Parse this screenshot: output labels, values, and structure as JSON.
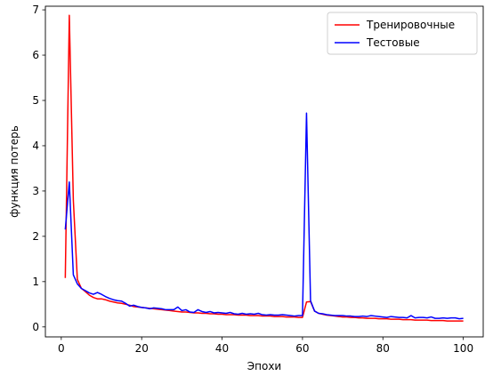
{
  "chart_data": {
    "type": "line",
    "xlabel": "Эпохи",
    "ylabel": "функция потерь",
    "xlim": [
      -3.95,
      104.95
    ],
    "ylim": [
      -0.22,
      7.08
    ],
    "xticks": [
      0,
      20,
      40,
      60,
      80,
      100
    ],
    "yticks": [
      0,
      1,
      2,
      3,
      4,
      5,
      6,
      7
    ],
    "grid": false,
    "legend_position": "top-right",
    "x": [
      1,
      2,
      3,
      4,
      5,
      6,
      7,
      8,
      9,
      10,
      11,
      12,
      13,
      14,
      15,
      16,
      17,
      18,
      19,
      20,
      21,
      22,
      23,
      24,
      25,
      26,
      27,
      28,
      29,
      30,
      31,
      32,
      33,
      34,
      35,
      36,
      37,
      38,
      39,
      40,
      41,
      42,
      43,
      44,
      45,
      46,
      47,
      48,
      49,
      50,
      51,
      52,
      53,
      54,
      55,
      56,
      57,
      58,
      59,
      60,
      61,
      62,
      63,
      64,
      65,
      66,
      67,
      68,
      69,
      70,
      71,
      72,
      73,
      74,
      75,
      76,
      77,
      78,
      79,
      80,
      81,
      82,
      83,
      84,
      85,
      86,
      87,
      88,
      89,
      90,
      91,
      92,
      93,
      94,
      95,
      96,
      97,
      98,
      99,
      100
    ],
    "series": [
      {
        "name": "Тренировочные",
        "color": "#ff0000",
        "values": [
          1.08,
          6.88,
          2.8,
          1.05,
          0.85,
          0.78,
          0.7,
          0.65,
          0.62,
          0.62,
          0.6,
          0.57,
          0.55,
          0.53,
          0.52,
          0.5,
          0.48,
          0.45,
          0.44,
          0.43,
          0.42,
          0.41,
          0.4,
          0.39,
          0.38,
          0.37,
          0.36,
          0.35,
          0.34,
          0.33,
          0.33,
          0.32,
          0.31,
          0.31,
          0.3,
          0.3,
          0.29,
          0.29,
          0.28,
          0.28,
          0.27,
          0.27,
          0.27,
          0.26,
          0.26,
          0.26,
          0.25,
          0.25,
          0.25,
          0.24,
          0.24,
          0.24,
          0.23,
          0.23,
          0.23,
          0.22,
          0.22,
          0.22,
          0.21,
          0.21,
          0.55,
          0.56,
          0.35,
          0.3,
          0.28,
          0.26,
          0.25,
          0.24,
          0.23,
          0.22,
          0.22,
          0.21,
          0.21,
          0.2,
          0.2,
          0.19,
          0.19,
          0.19,
          0.18,
          0.18,
          0.18,
          0.17,
          0.17,
          0.17,
          0.16,
          0.16,
          0.16,
          0.15,
          0.15,
          0.15,
          0.15,
          0.14,
          0.14,
          0.14,
          0.14,
          0.13,
          0.13,
          0.13,
          0.13,
          0.13
        ]
      },
      {
        "name": "Тестовые",
        "color": "#0000ff",
        "values": [
          2.15,
          3.2,
          1.15,
          0.95,
          0.85,
          0.8,
          0.75,
          0.72,
          0.76,
          0.72,
          0.67,
          0.63,
          0.6,
          0.58,
          0.57,
          0.52,
          0.46,
          0.48,
          0.45,
          0.43,
          0.42,
          0.4,
          0.42,
          0.41,
          0.4,
          0.38,
          0.38,
          0.38,
          0.44,
          0.36,
          0.38,
          0.33,
          0.32,
          0.38,
          0.34,
          0.32,
          0.34,
          0.31,
          0.32,
          0.31,
          0.3,
          0.32,
          0.29,
          0.28,
          0.3,
          0.28,
          0.29,
          0.28,
          0.3,
          0.27,
          0.26,
          0.27,
          0.26,
          0.26,
          0.27,
          0.26,
          0.25,
          0.24,
          0.25,
          0.25,
          4.72,
          0.58,
          0.35,
          0.3,
          0.29,
          0.27,
          0.26,
          0.25,
          0.25,
          0.25,
          0.24,
          0.24,
          0.23,
          0.23,
          0.24,
          0.23,
          0.25,
          0.24,
          0.23,
          0.22,
          0.21,
          0.23,
          0.22,
          0.21,
          0.21,
          0.2,
          0.25,
          0.2,
          0.21,
          0.21,
          0.2,
          0.22,
          0.19,
          0.19,
          0.2,
          0.19,
          0.2,
          0.2,
          0.18,
          0.19
        ]
      }
    ]
  }
}
